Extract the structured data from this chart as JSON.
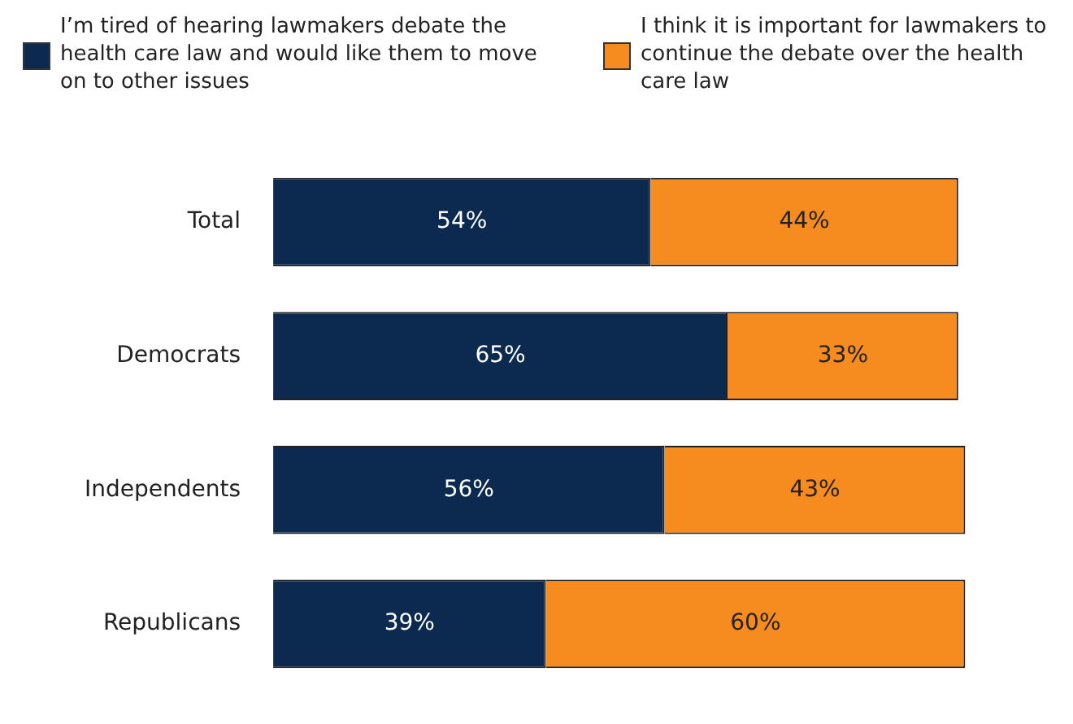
{
  "chart_data": {
    "type": "bar",
    "orientation": "horizontal",
    "stacked": true,
    "legend": "top left",
    "categories": [
      "Total",
      "Democrats",
      "Independents",
      "Republicans"
    ],
    "series": [
      {
        "name": "I’m tired of hearing lawmakers debate the health care law and would like them to move on to other issues",
        "color": "#0c2a50",
        "values": [
          54,
          65,
          56,
          39
        ],
        "value_labels": [
          "54%",
          "65%",
          "56%",
          "39%"
        ]
      },
      {
        "name": "I think it is important for lawmakers to continue the debate over the health care law",
        "color": "#f68b1f",
        "values": [
          44,
          33,
          43,
          60
        ],
        "value_labels": [
          "44%",
          "33%",
          "43%",
          "60%"
        ]
      }
    ]
  }
}
